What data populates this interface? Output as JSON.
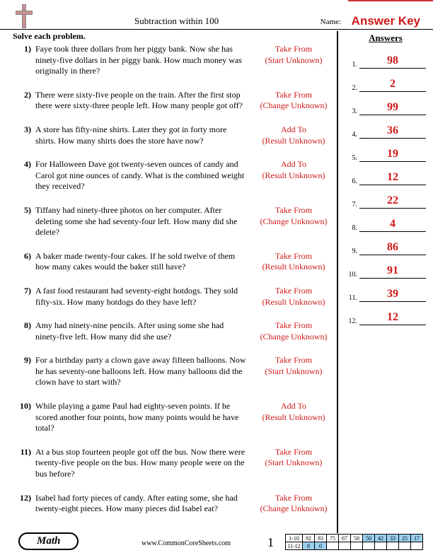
{
  "header": {
    "title": "Subtraction within 100",
    "name_label": "Name:",
    "answer_key": "Answer Key"
  },
  "instruction": "Solve each problem.",
  "answers_header": "Answers",
  "problems": [
    {
      "n": "1)",
      "text": "Faye took three dollars from her piggy bank. Now she has ninety-five dollars in her piggy bank. How much money was originally in there?",
      "type1": "Take From",
      "type2": "(Start Unknown)"
    },
    {
      "n": "2)",
      "text": "There were sixty-five people on the train. After the first stop there were sixty-three people left. How many people got off?",
      "type1": "Take From",
      "type2": "(Change Unknown)"
    },
    {
      "n": "3)",
      "text": "A store has fifty-nine shirts. Later they got in forty more shirts. How many shirts does the store have now?",
      "type1": "Add To",
      "type2": "(Result Unknown)"
    },
    {
      "n": "4)",
      "text": "For Halloween Dave got twenty-seven ounces of candy and Carol got nine ounces of candy. What is the combined weight they received?",
      "type1": "Add To",
      "type2": "(Result Unknown)"
    },
    {
      "n": "5)",
      "text": "Tiffany had ninety-three photos on her computer. After deleting some she had seventy-four left. How many did she delete?",
      "type1": "Take From",
      "type2": "(Change Unknown)"
    },
    {
      "n": "6)",
      "text": "A baker made twenty-four cakes. If he sold twelve of them how many cakes would the baker still have?",
      "type1": "Take From",
      "type2": "(Result Unknown)"
    },
    {
      "n": "7)",
      "text": "A fast food restaurant had seventy-eight hotdogs. They sold fifty-six. How many hotdogs do they have left?",
      "type1": "Take From",
      "type2": "(Result Unknown)"
    },
    {
      "n": "8)",
      "text": "Amy had ninety-nine pencils. After using some she had ninety-five left. How many did she use?",
      "type1": "Take From",
      "type2": "(Change Unknown)"
    },
    {
      "n": "9)",
      "text": "For a birthday party a clown gave away fifteen balloons. Now he has seventy-one balloons left. How many balloons did the clown have to start with?",
      "type1": "Take From",
      "type2": "(Start Unknown)"
    },
    {
      "n": "10)",
      "text": "While playing a game Paul had eighty-seven points. If he scored another four points, how many points would he have total?",
      "type1": "Add To",
      "type2": "(Result Unknown)"
    },
    {
      "n": "11)",
      "text": "At a bus stop fourteen people got off the bus. Now there were twenty-five people on the bus. How many people were on the bus before?",
      "type1": "Take From",
      "type2": "(Start Unknown)"
    },
    {
      "n": "12)",
      "text": "Isabel had forty pieces of candy. After eating some, she had twenty-eight pieces. How many pieces did Isabel eat?",
      "type1": "Take From",
      "type2": "(Change Unknown)"
    }
  ],
  "answers": [
    {
      "n": "1.",
      "v": "98"
    },
    {
      "n": "2.",
      "v": "2"
    },
    {
      "n": "3.",
      "v": "99"
    },
    {
      "n": "4.",
      "v": "36"
    },
    {
      "n": "5.",
      "v": "19"
    },
    {
      "n": "6.",
      "v": "12"
    },
    {
      "n": "7.",
      "v": "22"
    },
    {
      "n": "8.",
      "v": "4"
    },
    {
      "n": "9.",
      "v": "86"
    },
    {
      "n": "10.",
      "v": "91"
    },
    {
      "n": "11.",
      "v": "39"
    },
    {
      "n": "12.",
      "v": "12"
    }
  ],
  "footer": {
    "subject": "Math",
    "url": "www.CommonCoreSheets.com",
    "page": "1",
    "grid_rows": [
      {
        "label": "1-10",
        "cells": [
          "92",
          "83",
          "75",
          "67",
          "58",
          "50",
          "42",
          "33",
          "25",
          "17"
        ],
        "shade_from": 5
      },
      {
        "label": "11-12",
        "cells": [
          "8",
          "0",
          "",
          "",
          "",
          "",
          "",
          "",
          "",
          ""
        ],
        "shade_from": 0
      }
    ]
  },
  "colors": {
    "answer_red": "#d01818",
    "grid_blue": "#9cd0f0"
  }
}
